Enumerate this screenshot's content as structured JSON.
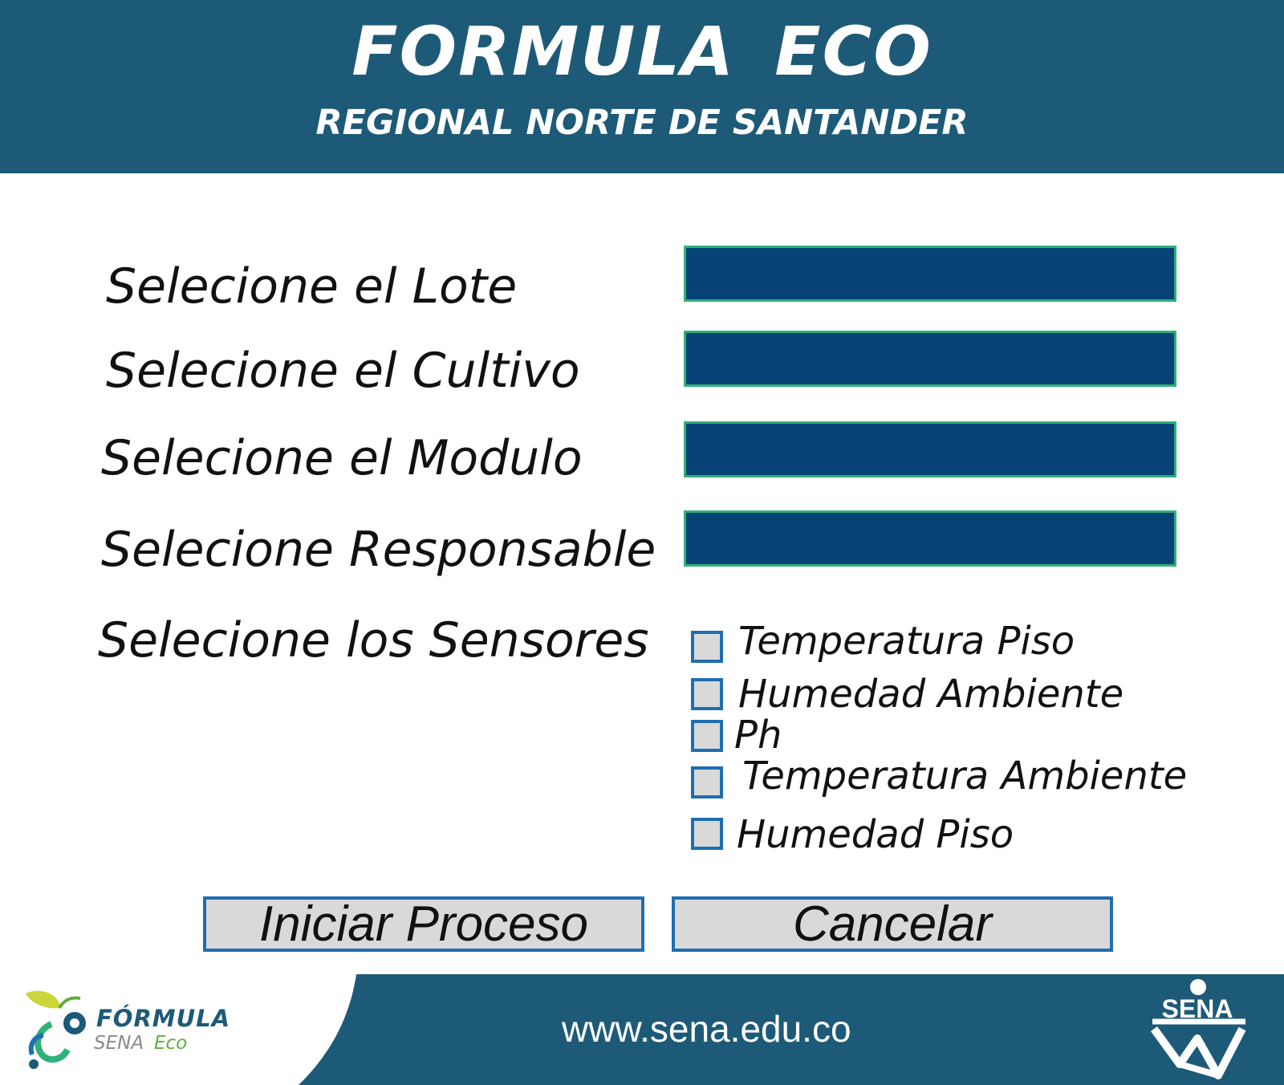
{
  "header": {
    "title": "FORMULA  ECO",
    "subtitle": "REGIONAL NORTE DE SANTANDER"
  },
  "form": {
    "lote_label": "Selecione el Lote",
    "cultivo_label": "Selecione el Cultivo",
    "modulo_label": "Selecione el Modulo",
    "responsable_label": "Selecione Responsable",
    "sensores_label": "Selecione los Sensores",
    "field_color": "#064275",
    "field_border_color": "#2fb179"
  },
  "sensors": [
    {
      "label": "Temperatura Piso",
      "checked": false
    },
    {
      "label": "Humedad Ambiente",
      "checked": false
    },
    {
      "label": "Ph",
      "checked": false
    },
    {
      "label": "Temperatura Ambiente",
      "checked": false
    },
    {
      "label": "Humedad Piso",
      "checked": false
    }
  ],
  "buttons": {
    "start_label": "Iniciar Proceso",
    "cancel_label": "Cancelar"
  },
  "footer": {
    "url": "www.sena.edu.co",
    "logo_line1": "FÓRMULA",
    "logo_line2": "SENA",
    "logo_line3": "Eco",
    "sena_logo_text": "SENA"
  },
  "colors": {
    "header_bg": "#1d5a77",
    "checkbox_border": "#1f6eb0",
    "button_bg": "#d9d9d9",
    "accent_green": "#5fae3e"
  }
}
